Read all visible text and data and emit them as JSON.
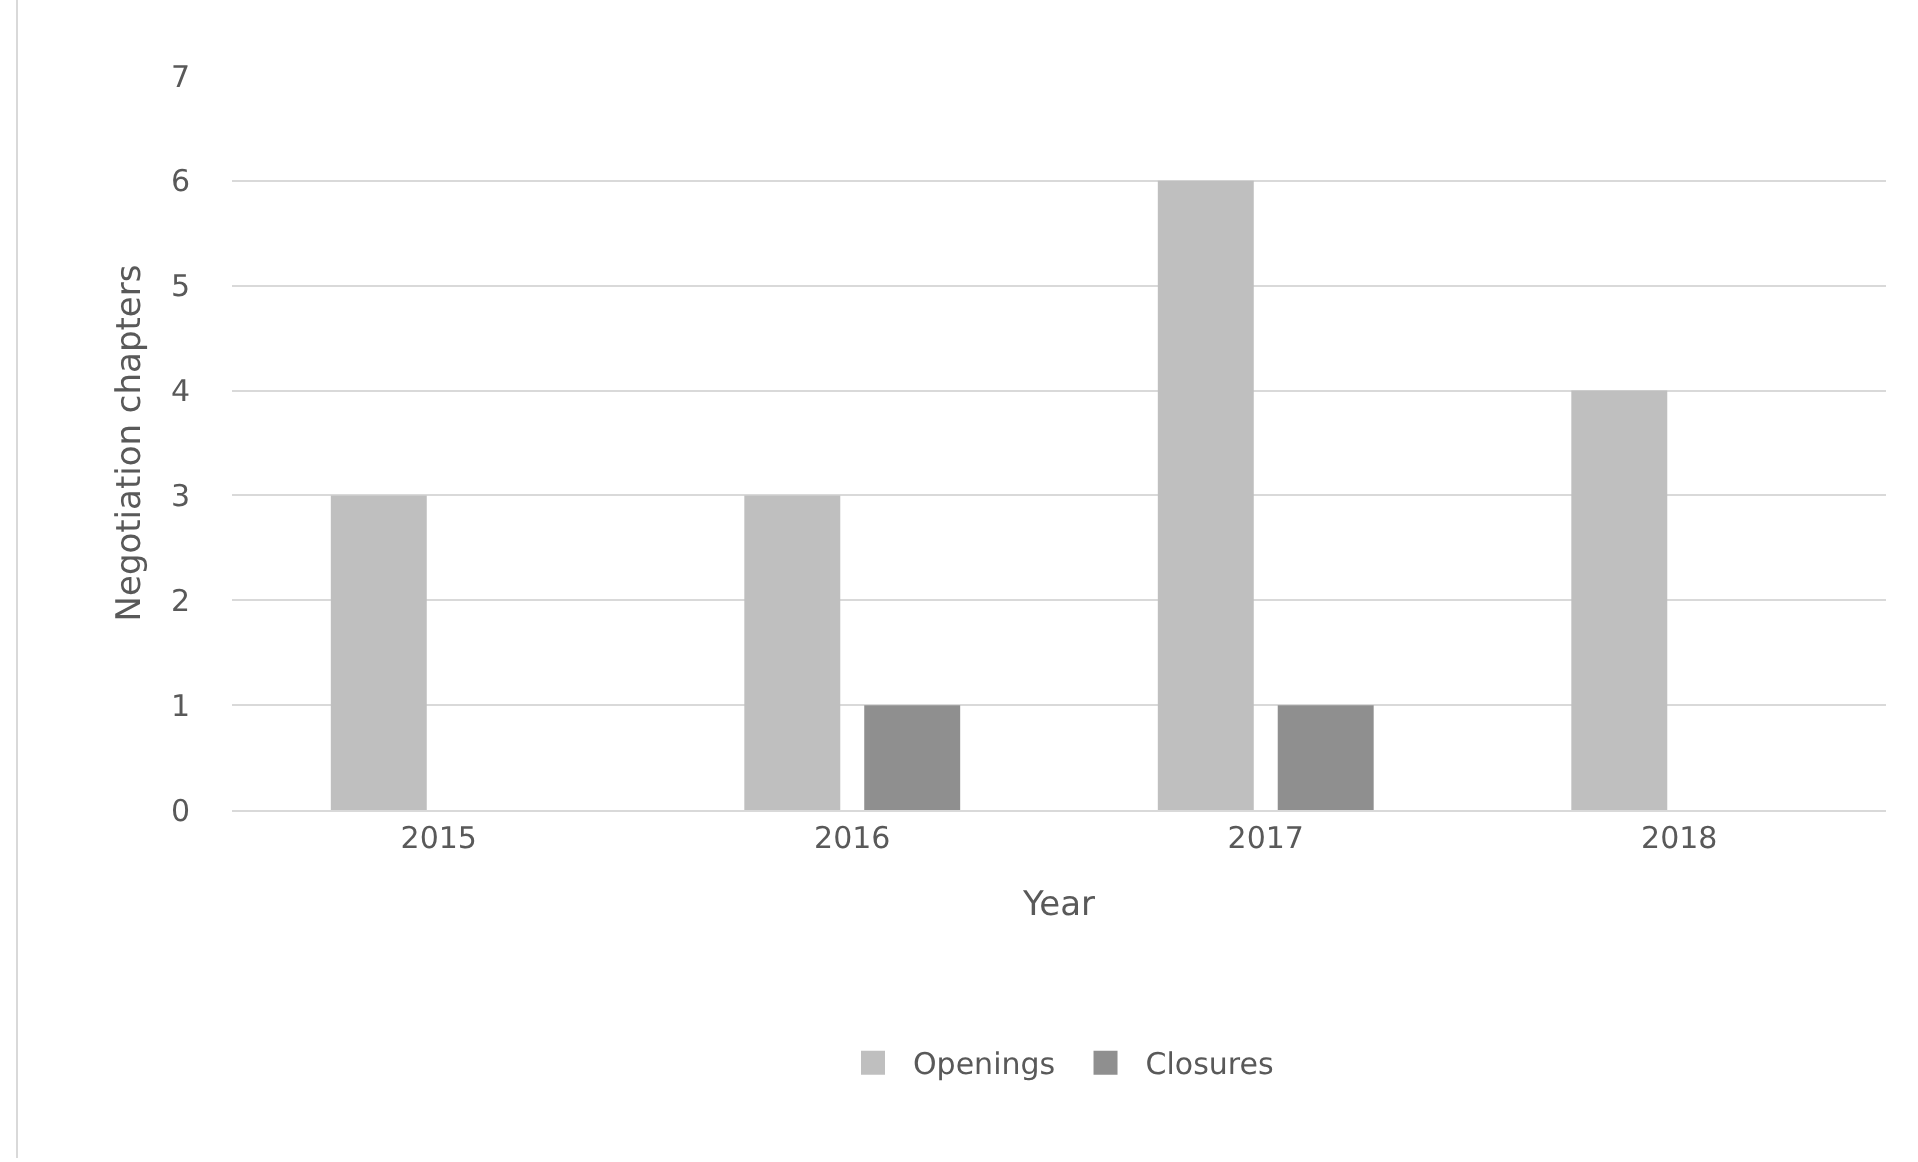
{
  "chart_data": {
    "type": "bar",
    "xlabel": "Year",
    "ylabel": "Negotiation chapters",
    "categories": [
      "2015",
      "2016",
      "2017",
      "2018"
    ],
    "series": [
      {
        "name": "Openings",
        "color": "#bfbfbf",
        "values": [
          3,
          3,
          6,
          4
        ]
      },
      {
        "name": "Closures",
        "color": "#8f8f8f",
        "values": [
          0,
          1,
          1,
          0
        ]
      }
    ],
    "ylim": [
      0,
      7
    ],
    "yticks": [
      0,
      1,
      2,
      3,
      4,
      5,
      6,
      7
    ],
    "grid": "y",
    "legend": "bottom"
  }
}
